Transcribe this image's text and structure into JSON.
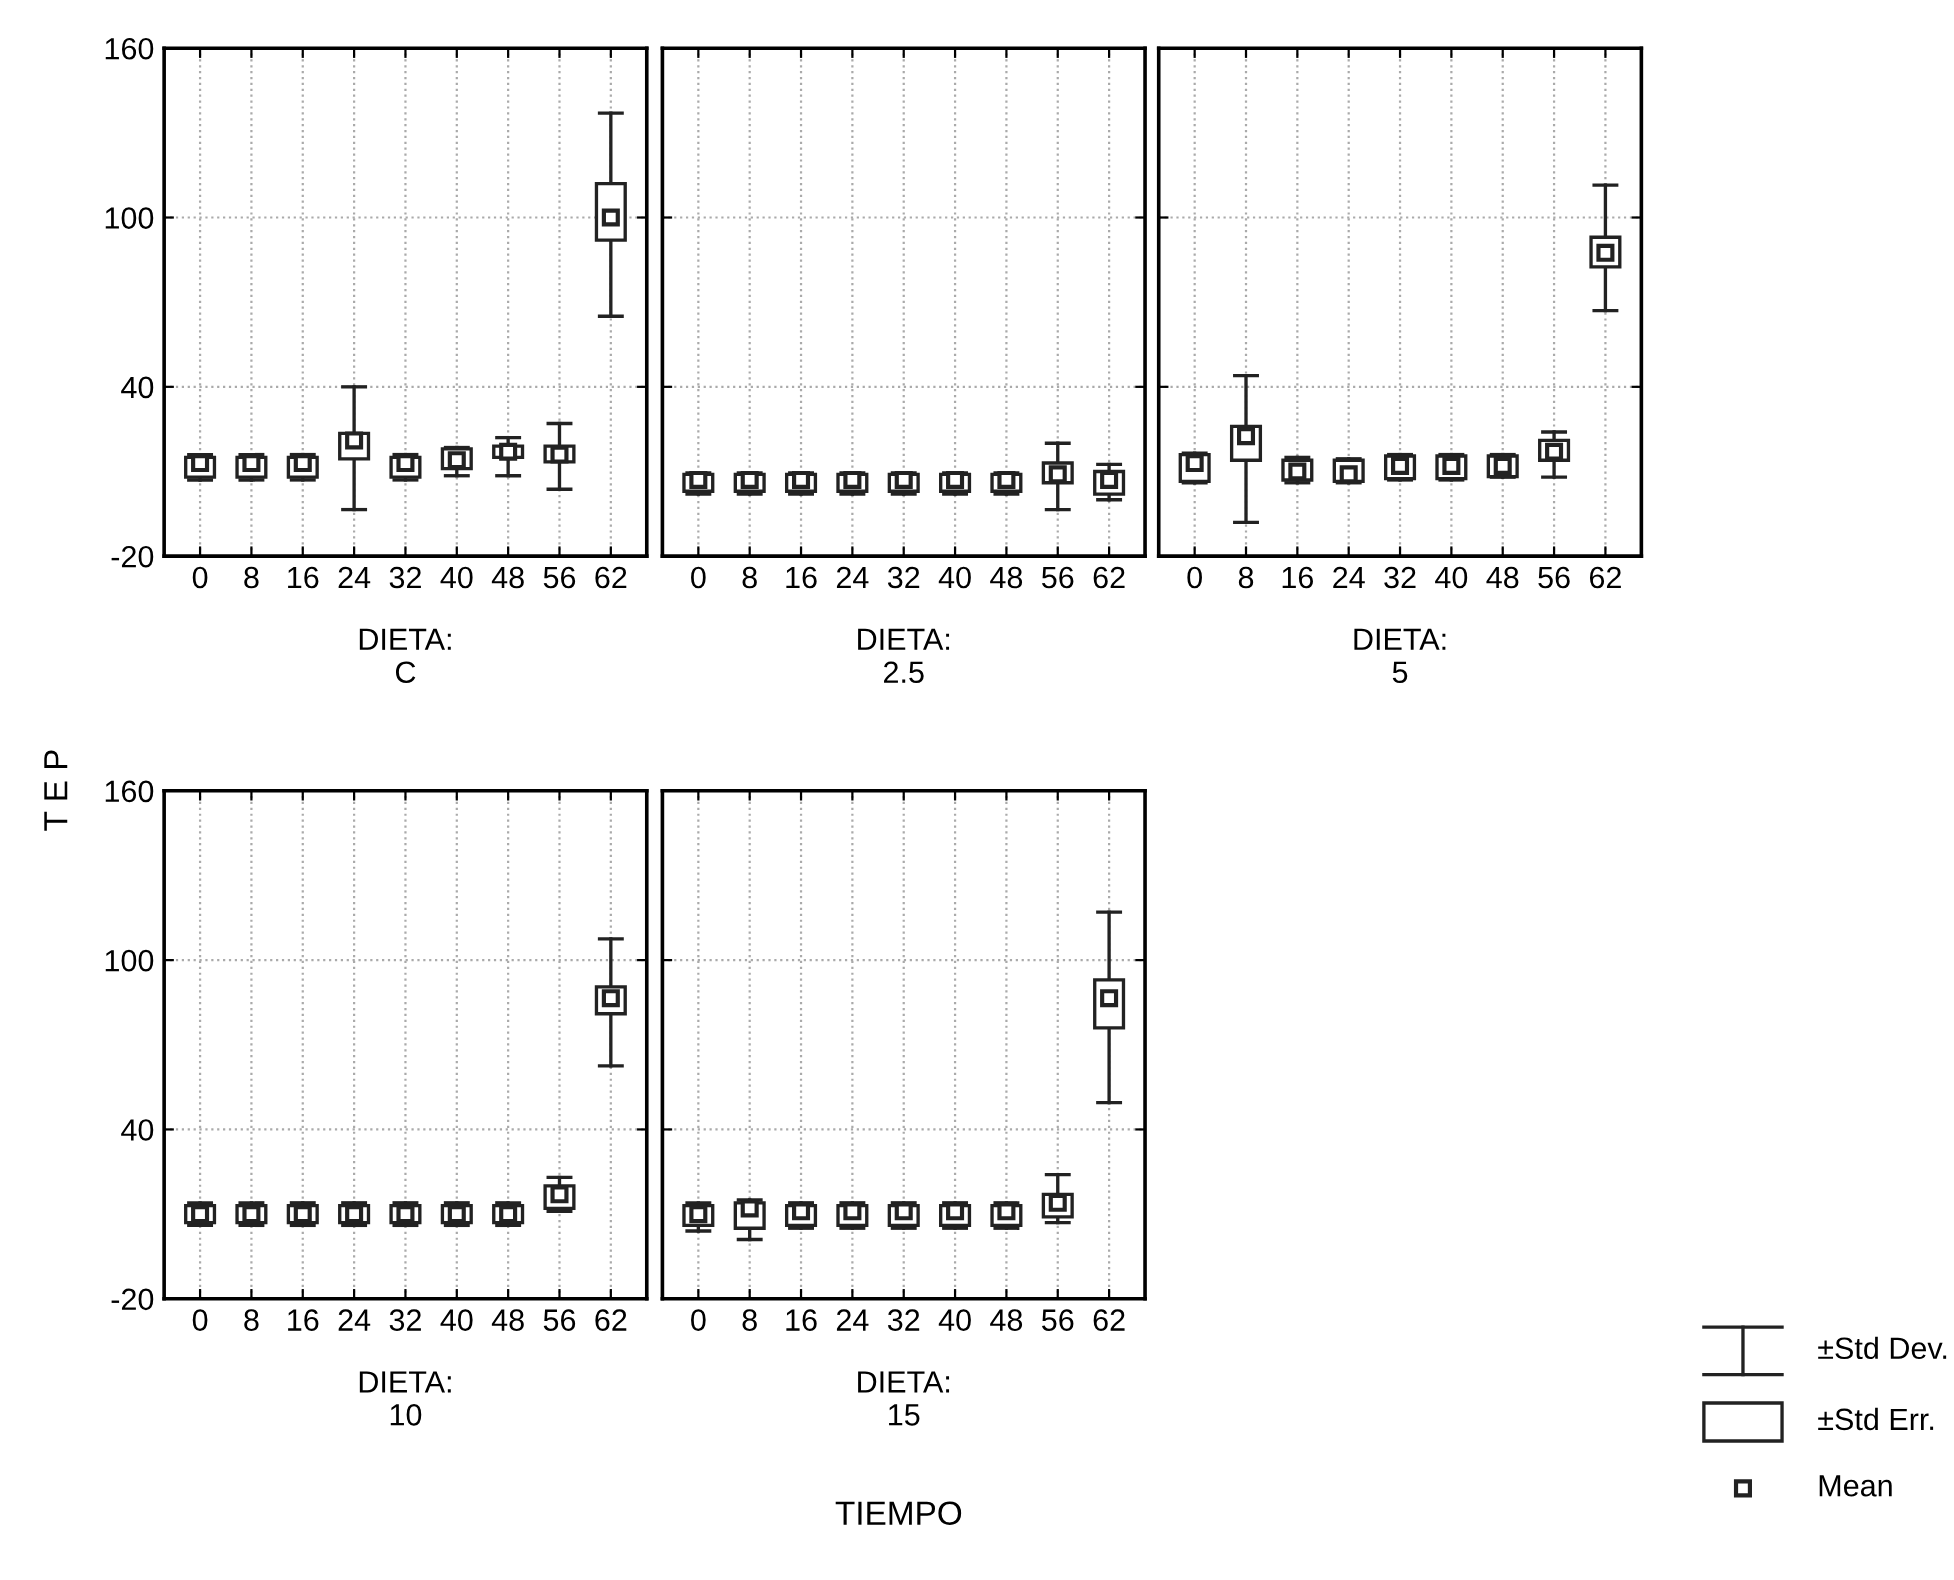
{
  "chart_data": [
    {
      "type": "box",
      "xlabel": "DIETA:\nC",
      "ylabel": "T E P",
      "categories": [
        "0",
        "8",
        "16",
        "24",
        "32",
        "40",
        "48",
        "56",
        "62"
      ],
      "ylim": [
        -20,
        160
      ],
      "yticks": [
        -20,
        40,
        100,
        160
      ],
      "grid": true,
      "boxes": [
        {
          "low": 7,
          "q1": 8,
          "mean": 13,
          "q3": 15,
          "high": 16
        },
        {
          "low": 7,
          "q1": 8,
          "mean": 13,
          "q3": 15,
          "high": 16
        },
        {
          "low": 7,
          "q1": 8,
          "mean": 13,
          "q3": 15,
          "high": 16
        },
        {
          "low": -3.5,
          "q1": 14.5,
          "mean": 21,
          "q3": 23.5,
          "high": 40
        },
        {
          "low": 7,
          "q1": 8,
          "mean": 13,
          "q3": 15,
          "high": 16
        },
        {
          "low": 8.5,
          "q1": 11,
          "mean": 14,
          "q3": 18,
          "high": 18.5
        },
        {
          "low": 8.5,
          "q1": 15,
          "mean": 17,
          "q3": 19,
          "high": 22
        },
        {
          "low": 3.7,
          "q1": 13.4,
          "mean": 16,
          "q3": 19,
          "high": 27
        },
        {
          "low": 65,
          "q1": 92,
          "mean": 100,
          "q3": 112,
          "high": 137
        }
      ]
    },
    {
      "type": "box",
      "xlabel": "DIETA:\n2.5",
      "categories": [
        "0",
        "8",
        "16",
        "24",
        "32",
        "40",
        "48",
        "56",
        "62"
      ],
      "ylim": [
        -20,
        160
      ],
      "yticks": [
        -20,
        40,
        100,
        160
      ],
      "grid": true,
      "tick_labels": "x",
      "boxes": [
        {
          "low": 2,
          "q1": 3,
          "mean": 7,
          "q3": 9,
          "high": 9.5
        },
        {
          "low": 2,
          "q1": 3,
          "mean": 7,
          "q3": 9,
          "high": 9.5
        },
        {
          "low": 2,
          "q1": 3,
          "mean": 7,
          "q3": 9,
          "high": 9.5
        },
        {
          "low": 2,
          "q1": 3,
          "mean": 7,
          "q3": 9,
          "high": 9.5
        },
        {
          "low": 2,
          "q1": 3,
          "mean": 7,
          "q3": 9,
          "high": 9.5
        },
        {
          "low": 2,
          "q1": 3,
          "mean": 7,
          "q3": 9,
          "high": 9.5
        },
        {
          "low": 2,
          "q1": 3,
          "mean": 7,
          "q3": 9,
          "high": 9.5
        },
        {
          "low": -3.5,
          "q1": 6,
          "mean": 9,
          "q3": 13,
          "high": 20
        },
        {
          "low": 0,
          "q1": 2,
          "mean": 7,
          "q3": 10,
          "high": 12.5
        }
      ]
    },
    {
      "type": "box",
      "xlabel": "DIETA:\n5",
      "categories": [
        "0",
        "8",
        "16",
        "24",
        "32",
        "40",
        "48",
        "56",
        "62"
      ],
      "ylim": [
        -20,
        160
      ],
      "yticks": [
        -20,
        40,
        100,
        160
      ],
      "grid": true,
      "tick_labels": "x",
      "boxes": [
        {
          "low": 6,
          "q1": 6.5,
          "mean": 13,
          "q3": 16,
          "high": 16.5
        },
        {
          "low": -8,
          "q1": 14,
          "mean": 22.5,
          "q3": 26,
          "high": 44
        },
        {
          "low": 6,
          "q1": 7,
          "mean": 10,
          "q3": 14,
          "high": 15
        },
        {
          "low": 6,
          "q1": 6.5,
          "mean": 9,
          "q3": 14,
          "high": 14.5
        },
        {
          "low": 7,
          "q1": 7.5,
          "mean": 12,
          "q3": 15.5,
          "high": 16
        },
        {
          "low": 7,
          "q1": 7.5,
          "mean": 12,
          "q3": 15.5,
          "high": 16
        },
        {
          "low": 8,
          "q1": 8.2,
          "mean": 12,
          "q3": 15.5,
          "high": 16
        },
        {
          "low": 8,
          "q1": 14,
          "mean": 17,
          "q3": 21,
          "high": 24
        },
        {
          "low": 67,
          "q1": 82.5,
          "mean": 87.5,
          "q3": 93,
          "high": 111.5
        }
      ]
    },
    {
      "type": "box",
      "xlabel": "DIETA:\n10",
      "categories": [
        "0",
        "8",
        "16",
        "24",
        "32",
        "40",
        "48",
        "56",
        "62"
      ],
      "ylim": [
        -20,
        160
      ],
      "yticks": [
        -20,
        40,
        100,
        160
      ],
      "grid": true,
      "boxes": [
        {
          "low": 6,
          "q1": 7,
          "mean": 10,
          "q3": 13,
          "high": 14
        },
        {
          "low": 6,
          "q1": 7,
          "mean": 10,
          "q3": 13,
          "high": 14
        },
        {
          "low": 6,
          "q1": 7,
          "mean": 10,
          "q3": 13,
          "high": 14
        },
        {
          "low": 6,
          "q1": 7,
          "mean": 10,
          "q3": 13,
          "high": 14
        },
        {
          "low": 6,
          "q1": 7,
          "mean": 10,
          "q3": 13,
          "high": 14
        },
        {
          "low": 6,
          "q1": 7,
          "mean": 10,
          "q3": 13,
          "high": 14
        },
        {
          "low": 6,
          "q1": 7,
          "mean": 10,
          "q3": 13,
          "high": 14
        },
        {
          "low": 11,
          "q1": 12,
          "mean": 17,
          "q3": 20,
          "high": 23
        },
        {
          "low": 62.5,
          "q1": 81,
          "mean": 86.5,
          "q3": 90.5,
          "high": 107.5
        }
      ]
    },
    {
      "type": "box",
      "xlabel": "DIETA:\n15",
      "categories": [
        "0",
        "8",
        "16",
        "24",
        "32",
        "40",
        "48",
        "56",
        "62"
      ],
      "ylim": [
        -20,
        160
      ],
      "yticks": [
        -20,
        40,
        100,
        160
      ],
      "grid": true,
      "tick_labels": "x",
      "annotations": [
        "±Std Dev.",
        "±Std Err.",
        "Mean",
        "TIEMPO"
      ],
      "boxes": [
        {
          "low": 4,
          "q1": 6,
          "mean": 10,
          "q3": 13,
          "high": 14
        },
        {
          "low": 1,
          "q1": 5,
          "mean": 12,
          "q3": 14,
          "high": 15
        },
        {
          "low": 5,
          "q1": 6,
          "mean": 11,
          "q3": 13,
          "high": 14
        },
        {
          "low": 5,
          "q1": 6,
          "mean": 11,
          "q3": 13,
          "high": 14
        },
        {
          "low": 5,
          "q1": 6,
          "mean": 11,
          "q3": 13,
          "high": 14
        },
        {
          "low": 5,
          "q1": 6,
          "mean": 11,
          "q3": 13,
          "high": 14
        },
        {
          "low": 5,
          "q1": 6,
          "mean": 11,
          "q3": 13,
          "high": 14
        },
        {
          "low": 7,
          "q1": 9,
          "mean": 14,
          "q3": 17,
          "high": 24
        },
        {
          "low": 49.5,
          "q1": 76,
          "mean": 86.5,
          "q3": 93,
          "high": 117
        }
      ]
    }
  ]
}
